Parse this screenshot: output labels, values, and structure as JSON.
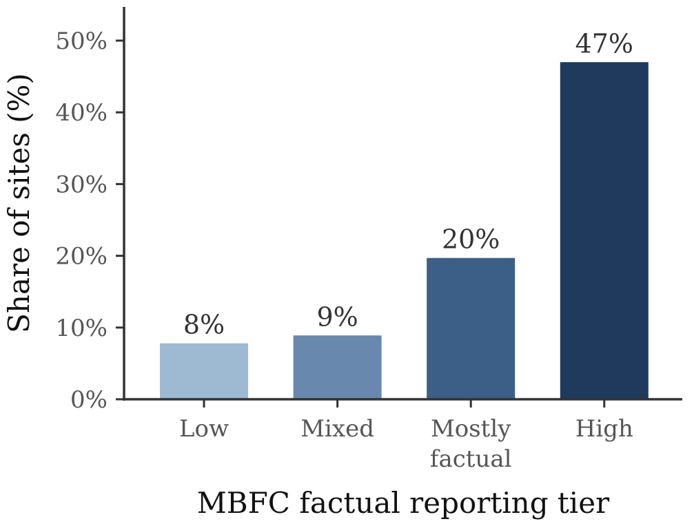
{
  "chart_data": {
    "type": "bar",
    "categories": [
      [
        "Low"
      ],
      [
        "Mixed"
      ],
      [
        "Mostly",
        "factual"
      ],
      [
        "High"
      ]
    ],
    "values": [
      7.8,
      8.9,
      19.7,
      47.0
    ],
    "data_labels": [
      "8%",
      "9%",
      "20%",
      "47%"
    ],
    "bar_colors": [
      "#9dbad2",
      "#6889ad",
      "#3b5f87",
      "#203a5e"
    ],
    "xlabel": "MBFC factual reporting tier",
    "ylabel": "Share of sites (%)",
    "ylim": [
      0,
      55
    ],
    "yticks": [
      0,
      10,
      20,
      30,
      40,
      50
    ],
    "ytick_labels": [
      "0%",
      "10%",
      "20%",
      "30%",
      "40%",
      "50%"
    ],
    "grid": false,
    "legend": "none"
  }
}
